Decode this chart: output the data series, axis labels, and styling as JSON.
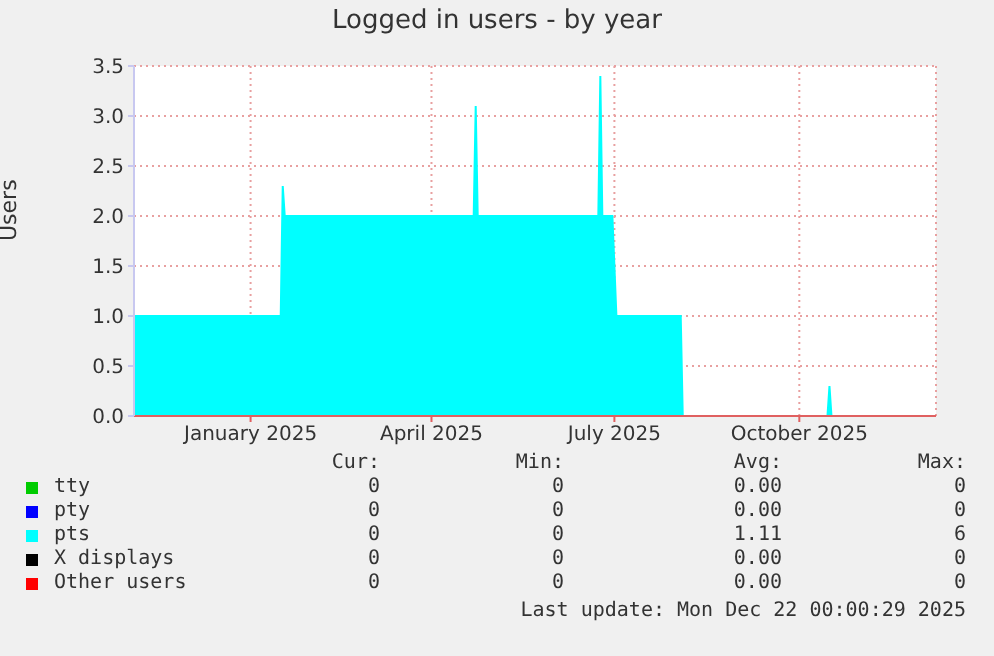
{
  "chart_data": {
    "type": "area",
    "title": "Logged in users - by year",
    "ylabel": "Users",
    "x": [
      "2024-11-19",
      "2025-01-31",
      "2025-02-01",
      "2025-02-02",
      "2025-05-07",
      "2025-05-08",
      "2025-05-09",
      "2025-07-08",
      "2025-07-09",
      "2025-07-10",
      "2025-07-15",
      "2025-07-17",
      "2025-08-18",
      "2025-08-19",
      "2025-10-30",
      "2025-10-31",
      "2025-11-01",
      "2025-12-22"
    ],
    "series": [
      {
        "name": "tty",
        "color": "#00cc00",
        "values": [
          null,
          null,
          null,
          null,
          null,
          null,
          null,
          null,
          null,
          null,
          null,
          null,
          null,
          null,
          null,
          null,
          null,
          null
        ]
      },
      {
        "name": "pty",
        "color": "#0000ff",
        "values": [
          null,
          null,
          null,
          null,
          null,
          null,
          null,
          null,
          null,
          null,
          null,
          null,
          null,
          null,
          null,
          null,
          null,
          null
        ]
      },
      {
        "name": "pts",
        "color": "#00ffff",
        "values": [
          1,
          1,
          2.3,
          2,
          2,
          3.1,
          2,
          2,
          3.4,
          2,
          2,
          1,
          1,
          0,
          0,
          0.3,
          0,
          0
        ]
      },
      {
        "name": "X displays",
        "color": "#000000",
        "values": [
          null,
          null,
          null,
          null,
          null,
          null,
          null,
          null,
          null,
          null,
          null,
          null,
          null,
          null,
          null,
          null,
          null,
          null
        ]
      },
      {
        "name": "Other users",
        "color": "#ff0000",
        "values": [
          null,
          null,
          null,
          null,
          null,
          null,
          null,
          null,
          null,
          null,
          null,
          null,
          null,
          null,
          null,
          null,
          null,
          null
        ]
      }
    ],
    "xlim": [
      "2024-11-19",
      "2025-12-23"
    ],
    "xticks": [
      {
        "value": "2025-01-16",
        "label": "January 2025"
      },
      {
        "value": "2025-04-16",
        "label": "April 2025"
      },
      {
        "value": "2025-07-16",
        "label": "July 2025"
      },
      {
        "value": "2025-10-16",
        "label": "October 2025"
      }
    ],
    "ylim": [
      0,
      3.5
    ],
    "yticks": [
      {
        "value": 0,
        "label": "0.0"
      },
      {
        "value": 0.5,
        "label": "0.5"
      },
      {
        "value": 1,
        "label": "1.0"
      },
      {
        "value": 1.5,
        "label": "1.5"
      },
      {
        "value": 2,
        "label": "2.0"
      },
      {
        "value": 2.5,
        "label": "2.5"
      },
      {
        "value": 3,
        "label": "3.0"
      },
      {
        "value": 3.5,
        "label": "3.5"
      }
    ],
    "grid": true,
    "legend": "bottom",
    "annotations": [
      "Cur:",
      "Min:",
      "Avg:",
      "Max:",
      "0",
      "0",
      "0.00",
      "0",
      "0",
      "0",
      "0.00",
      "0",
      "0",
      "0",
      "1.11",
      "6",
      "0",
      "0",
      "0.00",
      "0",
      "0",
      "0",
      "0.00",
      "0",
      "Last update: Mon Dec 22 00:00:29 2025"
    ]
  }
}
